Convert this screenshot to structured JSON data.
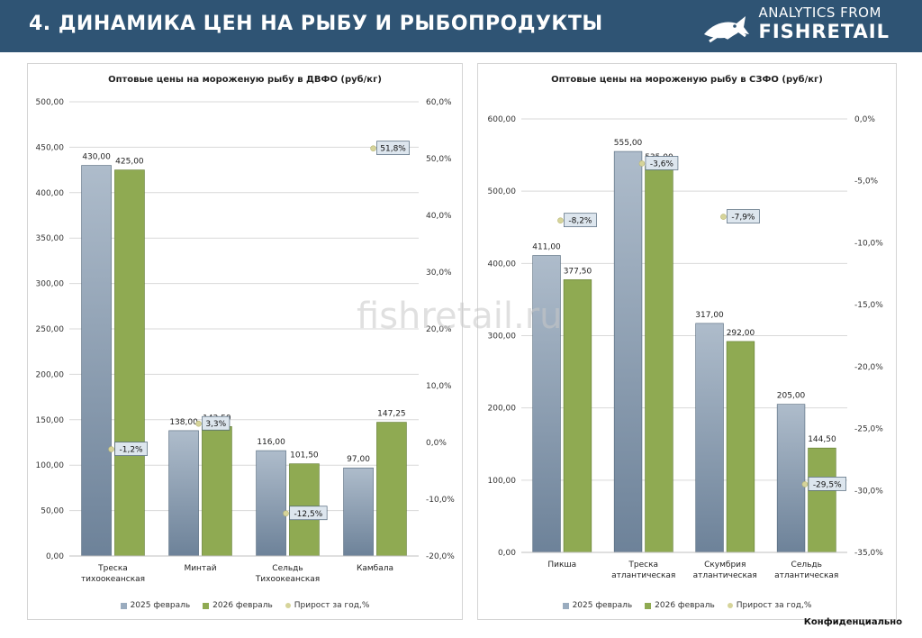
{
  "header": {
    "title": "4. ДИНАМИКА ЦЕН НА РЫБУ И РЫБОПРОДУКТЫ",
    "brand_top": "ANALYTICS FROM",
    "brand_name": "FISHRETAIL",
    "bg_color": "#2f5474"
  },
  "watermark": "fishretail.ru",
  "footer": {
    "note": "Конфиденциально"
  },
  "legend": {
    "s1": "2025 февраль",
    "s2": "2026 февраль",
    "s3": "Прирост за год,%",
    "colors": {
      "s1": "#9aacbf",
      "s2": "#8faa52",
      "s3": "#d6d49a"
    }
  },
  "chart_data": [
    {
      "type": "bar",
      "title": "Оптовые цены на мороженую рыбу в ДВФО (руб/кг)",
      "categories": [
        [
          "Треска",
          "тихоокеанская"
        ],
        [
          "Минтай"
        ],
        [
          "Сельдь",
          "Тихоокеанская"
        ],
        [
          "Камбала"
        ]
      ],
      "series": [
        {
          "name": "2025 февраль",
          "values": [
            430.0,
            138.0,
            116.0,
            97.0
          ],
          "labels": [
            "430,00",
            "138,00",
            "116,00",
            "97,00"
          ]
        },
        {
          "name": "2026 февраль",
          "values": [
            425.0,
            142.5,
            101.5,
            147.25
          ],
          "labels": [
            "425,00",
            "142,50",
            "101,50",
            "147,25"
          ]
        },
        {
          "name": "Прирост за год,%",
          "axis": "secondary",
          "values": [
            -1.2,
            3.3,
            -12.5,
            51.8
          ],
          "labels": [
            "-1,2%",
            "3,3%",
            "-12,5%",
            "51,8%"
          ]
        }
      ],
      "ylim": [
        0,
        500
      ],
      "yticks": [
        "0,00",
        "50,00",
        "100,00",
        "150,00",
        "200,00",
        "250,00",
        "300,00",
        "350,00",
        "400,00",
        "450,00",
        "500,00"
      ],
      "y2lim": [
        -20,
        60
      ],
      "y2ticks": [
        "-20,0%",
        "-10,0%",
        "0,0%",
        "10,0%",
        "20,0%",
        "30,0%",
        "40,0%",
        "50,0%",
        "60,0%"
      ]
    },
    {
      "type": "bar",
      "title": "Оптовые цены на мороженую рыбу в СЗФО (руб/кг)",
      "categories": [
        [
          "Пикша"
        ],
        [
          "Треска",
          "атлантическая"
        ],
        [
          "Скумбрия",
          "атлантическая"
        ],
        [
          "Сельдь",
          "атлантическая"
        ]
      ],
      "series": [
        {
          "name": "2025 февраль",
          "values": [
            411.0,
            555.0,
            317.0,
            205.0
          ],
          "labels": [
            "411,00",
            "555,00",
            "317,00",
            "205,00"
          ]
        },
        {
          "name": "2026 февраль",
          "values": [
            377.5,
            535.0,
            292.0,
            144.5
          ],
          "labels": [
            "377,50",
            "535,00",
            "292,00",
            "144,50"
          ]
        },
        {
          "name": "Прирост за год,%",
          "axis": "secondary",
          "values": [
            -8.2,
            -3.6,
            -7.9,
            -29.5
          ],
          "labels": [
            "-8,2%",
            "-3,6%",
            "-7,9%",
            "-29,5%"
          ]
        }
      ],
      "ylim": [
        0,
        600
      ],
      "yticks": [
        "0,00",
        "100,00",
        "200,00",
        "300,00",
        "400,00",
        "500,00",
        "600,00"
      ],
      "y2lim": [
        -35,
        0
      ],
      "y2ticks": [
        "-35,0%",
        "-30,0%",
        "-25,0%",
        "-20,0%",
        "-15,0%",
        "-10,0%",
        "-5,0%",
        "0,0%"
      ]
    }
  ]
}
